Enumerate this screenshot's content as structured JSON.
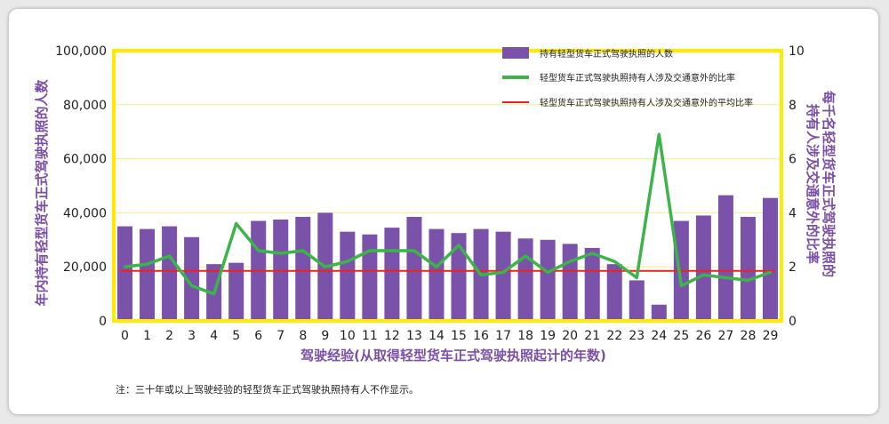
{
  "chart_data": {
    "type": "bar",
    "categories": [
      "0",
      "1",
      "2",
      "3",
      "4",
      "5",
      "6",
      "7",
      "8",
      "9",
      "10",
      "11",
      "12",
      "13",
      "14",
      "15",
      "16",
      "17",
      "18",
      "19",
      "20",
      "21",
      "22",
      "23",
      "24",
      "25",
      "26",
      "27",
      "28",
      "29"
    ],
    "series": [
      {
        "name": "持有轻型货车正式驾驶执照的人数",
        "type": "bar",
        "axis": "left",
        "values": [
          35000,
          34000,
          35000,
          31000,
          21000,
          21500,
          37000,
          37500,
          38500,
          40000,
          33000,
          32000,
          34500,
          38500,
          34000,
          32500,
          34000,
          33000,
          30500,
          30000,
          28500,
          27000,
          21000,
          15000,
          6000,
          37000,
          39000,
          46500,
          38500,
          45500
        ]
      },
      {
        "name": "轻型货车正式驾驶执照持有人涉及交通意外的比率",
        "type": "line",
        "axis": "right",
        "values": [
          2.0,
          2.1,
          2.4,
          1.3,
          1.0,
          3.6,
          2.6,
          2.5,
          2.6,
          2.0,
          2.2,
          2.6,
          2.6,
          2.6,
          2.0,
          2.8,
          1.7,
          1.8,
          2.4,
          1.8,
          2.2,
          2.5,
          2.2,
          1.6,
          6.9,
          1.3,
          1.7,
          1.6,
          1.5,
          1.8
        ]
      },
      {
        "name": "轻型货车正式驾驶执照持有人涉及交通意外的平均比率",
        "type": "line",
        "axis": "right",
        "constant": 1.85
      }
    ],
    "xlabel": "驾驶经验(从取得轻型货车正式驾驶执照起计的年数)",
    "ylabel": "年内持有轻型货车正式驾驶执照的人数",
    "y2label": "每千名轻型货车正式驾驶执照的持有人涉及交通意外的比率",
    "ylim": [
      0,
      100000
    ],
    "y2lim": [
      0,
      10
    ],
    "yticks": [
      "0",
      "20,000",
      "40,000",
      "60,000",
      "80,000",
      "100,000"
    ],
    "y2ticks": [
      "0",
      "2",
      "4",
      "6",
      "8",
      "10"
    ],
    "grid": true,
    "legend_position": "top-right"
  },
  "ylabel_lines": [
    "年内持有轻型货车正式驾驶执照的人数"
  ],
  "y2label_lines": [
    "每千名轻型货车正式驾驶执照的",
    "持有人涉及交通意外的比率"
  ],
  "note": "注：三十年或以上驾驶经验的轻型货车正式驾驶执照持有人不作显示。",
  "colors": {
    "bar": "#7b52a9",
    "line": "#3cb44a",
    "average": "#e8212b",
    "frame": "#ffea00",
    "grid": "#f5ef80",
    "axis_title": "#7a4fa6"
  }
}
